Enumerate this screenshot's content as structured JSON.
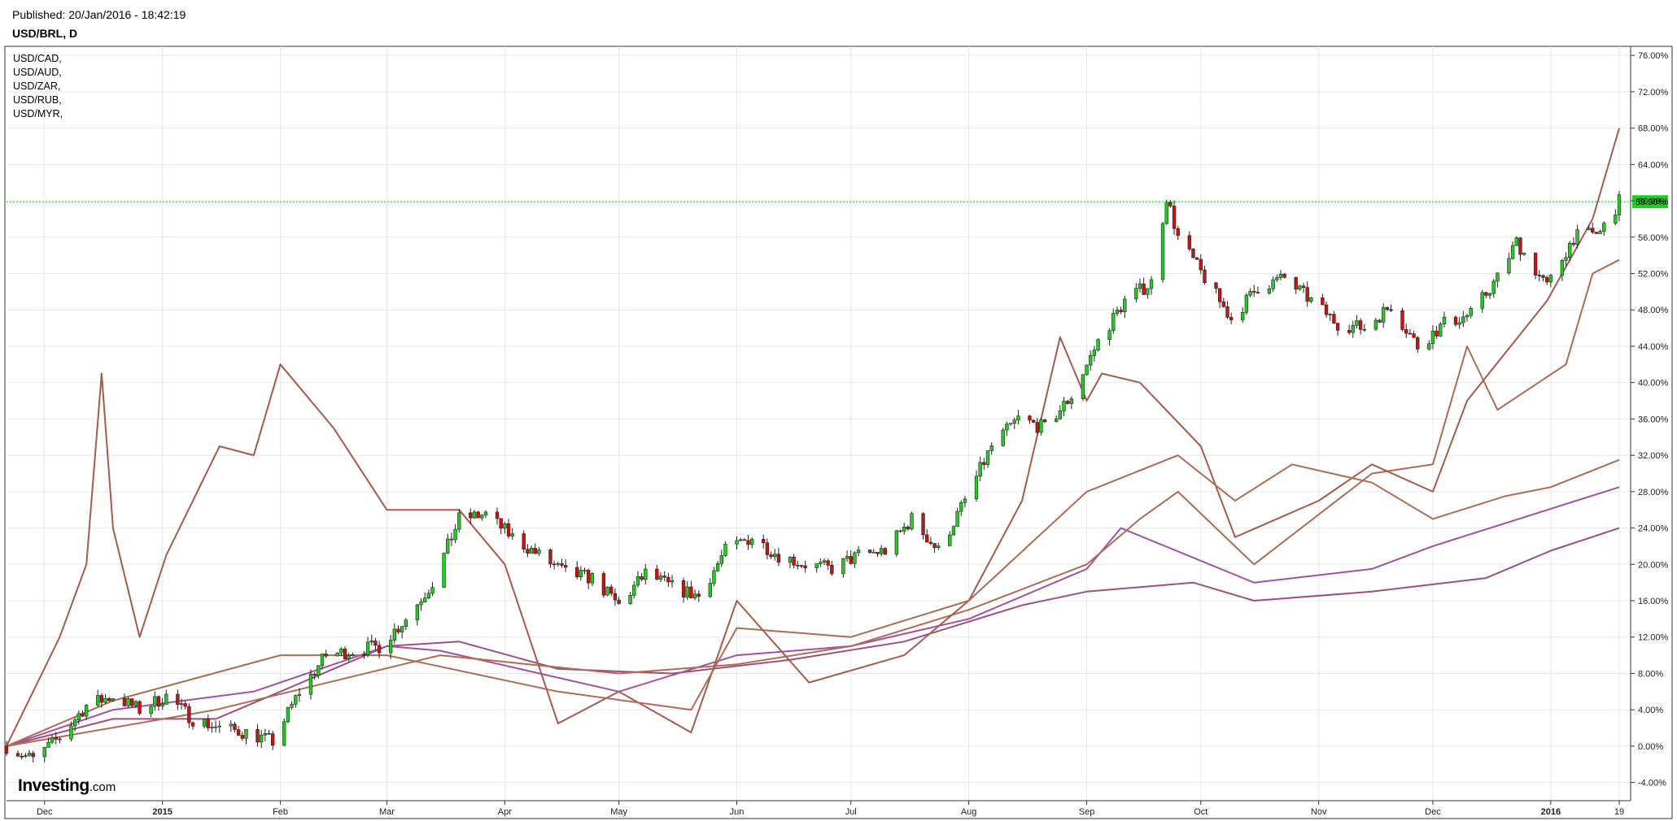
{
  "header": {
    "published": "Published: 20/Jan/2016 - 18:42:19",
    "symbol": "USD/BRL, D"
  },
  "brand": {
    "name": "Investing",
    "suffix": ".com"
  },
  "legend": [
    "USD/CAD,",
    "USD/AUD,",
    "USD/ZAR,",
    "USD/RUB,",
    "USD/MYR,"
  ],
  "colors": {
    "up": "#22cc22",
    "down": "#cc1111",
    "candle_outline": "#222222",
    "grid": "#e8e8e8",
    "current_line": "#22cc22",
    "current_badge": "#22cc22",
    "comparison": [
      "#9c4f80",
      "#a44fa6",
      "#b06a52",
      "#a85a4a",
      "#b06a52"
    ]
  },
  "chart_data": {
    "type": "candlestick",
    "title": "USD/BRL, D",
    "y_unit": "% change",
    "ylim": [
      -6,
      77
    ],
    "yticks": [
      -4,
      0,
      4,
      8,
      12,
      16,
      20,
      24,
      28,
      32,
      36,
      40,
      44,
      48,
      52,
      56,
      60,
      64,
      68,
      72,
      76
    ],
    "ytick_labels": [
      "-4.00%",
      "0.00%",
      "4.00%",
      "8.00%",
      "12.00%",
      "16.00%",
      "20.00%",
      "24.00%",
      "28.00%",
      "32.00%",
      "36.00%",
      "40.00%",
      "44.00%",
      "48.00%",
      "52.00%",
      "56.00%",
      "60.00%",
      "64.00%",
      "68.00%",
      "72.00%",
      "76.00%"
    ],
    "xlim": [
      "2014-11-21",
      "2016-01-22"
    ],
    "xticks": [
      {
        "date": "2014-12-01",
        "label": "Dec",
        "bold": false
      },
      {
        "date": "2015-01-01",
        "label": "2015",
        "bold": true
      },
      {
        "date": "2015-02-01",
        "label": "Feb",
        "bold": false
      },
      {
        "date": "2015-03-01",
        "label": "Mar",
        "bold": false
      },
      {
        "date": "2015-04-01",
        "label": "Apr",
        "bold": false
      },
      {
        "date": "2015-05-01",
        "label": "May",
        "bold": false
      },
      {
        "date": "2015-06-01",
        "label": "Jun",
        "bold": false
      },
      {
        "date": "2015-07-01",
        "label": "Jul",
        "bold": false
      },
      {
        "date": "2015-08-01",
        "label": "Aug",
        "bold": false
      },
      {
        "date": "2015-09-01",
        "label": "Sep",
        "bold": false
      },
      {
        "date": "2015-10-01",
        "label": "Oct",
        "bold": false
      },
      {
        "date": "2015-11-01",
        "label": "Nov",
        "bold": false
      },
      {
        "date": "2015-12-01",
        "label": "Dec",
        "bold": false
      },
      {
        "date": "2016-01-01",
        "label": "2016",
        "bold": true
      },
      {
        "date": "2016-01-19",
        "label": "19",
        "bold": false
      }
    ],
    "current_value": 59.9,
    "current_label": "59.90%",
    "main_series": {
      "name": "USD/BRL",
      "close": [
        [
          "2014-11-21",
          0
        ],
        [
          "2014-11-28",
          -1.5
        ],
        [
          "2014-12-05",
          1
        ],
        [
          "2014-12-12",
          4.5
        ],
        [
          "2014-12-19",
          5.5
        ],
        [
          "2014-12-26",
          4
        ],
        [
          "2015-01-02",
          5.5
        ],
        [
          "2015-01-09",
          3
        ],
        [
          "2015-01-16",
          2
        ],
        [
          "2015-01-23",
          1.5
        ],
        [
          "2015-01-30",
          0.5
        ],
        [
          "2015-02-06",
          6
        ],
        [
          "2015-02-13",
          10
        ],
        [
          "2015-02-20",
          10.5
        ],
        [
          "2015-02-27",
          11
        ],
        [
          "2015-03-06",
          14
        ],
        [
          "2015-03-13",
          18
        ],
        [
          "2015-03-20",
          25
        ],
        [
          "2015-03-27",
          25.5
        ],
        [
          "2015-04-03",
          23
        ],
        [
          "2015-04-10",
          21
        ],
        [
          "2015-04-17",
          19
        ],
        [
          "2015-04-24",
          18.5
        ],
        [
          "2015-05-01",
          15.5
        ],
        [
          "2015-05-08",
          19
        ],
        [
          "2015-05-15",
          17.5
        ],
        [
          "2015-05-22",
          16.5
        ],
        [
          "2015-05-29",
          21.5
        ],
        [
          "2015-06-05",
          23
        ],
        [
          "2015-06-12",
          21
        ],
        [
          "2015-06-19",
          20
        ],
        [
          "2015-06-26",
          19.5
        ],
        [
          "2015-07-03",
          21
        ],
        [
          "2015-07-10",
          21.5
        ],
        [
          "2015-07-17",
          25
        ],
        [
          "2015-07-24",
          21.5
        ],
        [
          "2015-07-31",
          27
        ],
        [
          "2015-08-07",
          33
        ],
        [
          "2015-08-14",
          36
        ],
        [
          "2015-08-21",
          35
        ],
        [
          "2015-08-28",
          38.5
        ],
        [
          "2015-09-04",
          44.5
        ],
        [
          "2015-09-11",
          49
        ],
        [
          "2015-09-18",
          51
        ],
        [
          "2015-09-22",
          60.5
        ],
        [
          "2015-09-25",
          56
        ],
        [
          "2015-10-02",
          51.5
        ],
        [
          "2015-10-09",
          47
        ],
        [
          "2015-10-16",
          50.5
        ],
        [
          "2015-10-23",
          51.5
        ],
        [
          "2015-10-30",
          49
        ],
        [
          "2015-11-06",
          46.5
        ],
        [
          "2015-11-13",
          46
        ],
        [
          "2015-11-20",
          48.5
        ],
        [
          "2015-11-27",
          44
        ],
        [
          "2015-12-04",
          46.5
        ],
        [
          "2015-12-11",
          47.5
        ],
        [
          "2015-12-18",
          51.5
        ],
        [
          "2015-12-23",
          55.5
        ],
        [
          "2015-12-31",
          50.5
        ],
        [
          "2016-01-07",
          56
        ],
        [
          "2016-01-14",
          56.5
        ],
        [
          "2016-01-19",
          59.9
        ]
      ]
    },
    "series": [
      {
        "name": "USD/CAD",
        "points": [
          [
            "2014-11-21",
            0
          ],
          [
            "2014-12-19",
            3
          ],
          [
            "2015-01-15",
            3
          ],
          [
            "2015-02-01",
            6
          ],
          [
            "2015-03-01",
            11
          ],
          [
            "2015-03-20",
            11.5
          ],
          [
            "2015-04-15",
            8.5
          ],
          [
            "2015-05-15",
            8
          ],
          [
            "2015-06-15",
            9.5
          ],
          [
            "2015-07-15",
            11.5
          ],
          [
            "2015-08-15",
            15.5
          ],
          [
            "2015-09-01",
            17
          ],
          [
            "2015-09-29",
            18
          ],
          [
            "2015-10-15",
            16
          ],
          [
            "2015-11-15",
            17
          ],
          [
            "2015-12-15",
            18.5
          ],
          [
            "2016-01-01",
            21.5
          ],
          [
            "2016-01-19",
            24
          ]
        ]
      },
      {
        "name": "USD/AUD",
        "points": [
          [
            "2014-11-21",
            0
          ],
          [
            "2014-12-19",
            4
          ],
          [
            "2015-01-25",
            6
          ],
          [
            "2015-03-01",
            11
          ],
          [
            "2015-03-15",
            10.5
          ],
          [
            "2015-05-01",
            6
          ],
          [
            "2015-06-01",
            10
          ],
          [
            "2015-07-01",
            11
          ],
          [
            "2015-08-01",
            14
          ],
          [
            "2015-09-01",
            19.5
          ],
          [
            "2015-09-10",
            24
          ],
          [
            "2015-10-15",
            18
          ],
          [
            "2015-11-15",
            19.5
          ],
          [
            "2015-12-01",
            22
          ],
          [
            "2016-01-19",
            28.5
          ]
        ]
      },
      {
        "name": "USD/ZAR",
        "points": [
          [
            "2014-11-21",
            0
          ],
          [
            "2015-01-15",
            4
          ],
          [
            "2015-03-15",
            10
          ],
          [
            "2015-05-01",
            8
          ],
          [
            "2015-06-01",
            9
          ],
          [
            "2015-07-01",
            11
          ],
          [
            "2015-08-01",
            15
          ],
          [
            "2015-09-01",
            20
          ],
          [
            "2015-09-15",
            25
          ],
          [
            "2015-09-25",
            28
          ],
          [
            "2015-10-15",
            20
          ],
          [
            "2015-11-15",
            30
          ],
          [
            "2015-12-01",
            31
          ],
          [
            "2015-12-10",
            44
          ],
          [
            "2015-12-18",
            37
          ],
          [
            "2016-01-05",
            42
          ],
          [
            "2016-01-12",
            52
          ],
          [
            "2016-01-19",
            53.5
          ]
        ]
      },
      {
        "name": "USD/RUB",
        "points": [
          [
            "2014-11-21",
            0
          ],
          [
            "2014-12-05",
            12
          ],
          [
            "2014-12-12",
            20
          ],
          [
            "2014-12-16",
            41
          ],
          [
            "2014-12-19",
            24
          ],
          [
            "2014-12-26",
            12
          ],
          [
            "2015-01-02",
            21
          ],
          [
            "2015-01-16",
            33
          ],
          [
            "2015-01-25",
            32
          ],
          [
            "2015-02-01",
            42
          ],
          [
            "2015-02-15",
            35
          ],
          [
            "2015-03-01",
            26
          ],
          [
            "2015-03-20",
            26
          ],
          [
            "2015-04-01",
            20
          ],
          [
            "2015-04-15",
            2.5
          ],
          [
            "2015-05-01",
            6
          ],
          [
            "2015-05-20",
            1.5
          ],
          [
            "2015-06-01",
            16
          ],
          [
            "2015-06-20",
            7
          ],
          [
            "2015-07-15",
            10
          ],
          [
            "2015-08-01",
            16
          ],
          [
            "2015-08-15",
            27
          ],
          [
            "2015-08-25",
            45
          ],
          [
            "2015-09-01",
            38
          ],
          [
            "2015-09-05",
            41
          ],
          [
            "2015-09-15",
            40
          ],
          [
            "2015-10-01",
            33
          ],
          [
            "2015-10-10",
            23
          ],
          [
            "2015-11-01",
            27
          ],
          [
            "2015-11-15",
            31
          ],
          [
            "2015-12-01",
            28
          ],
          [
            "2015-12-10",
            38
          ],
          [
            "2015-12-31",
            49
          ],
          [
            "2016-01-12",
            58
          ],
          [
            "2016-01-19",
            68
          ]
        ]
      },
      {
        "name": "USD/MYR",
        "points": [
          [
            "2014-11-21",
            0
          ],
          [
            "2014-12-19",
            5
          ],
          [
            "2015-02-01",
            10
          ],
          [
            "2015-03-01",
            10
          ],
          [
            "2015-04-15",
            6
          ],
          [
            "2015-05-20",
            4
          ],
          [
            "2015-06-01",
            13
          ],
          [
            "2015-07-01",
            12
          ],
          [
            "2015-08-01",
            16
          ],
          [
            "2015-09-01",
            28
          ],
          [
            "2015-09-25",
            32
          ],
          [
            "2015-10-10",
            27
          ],
          [
            "2015-10-25",
            31
          ],
          [
            "2015-11-15",
            29
          ],
          [
            "2015-12-01",
            25
          ],
          [
            "2015-12-20",
            27.5
          ],
          [
            "2016-01-01",
            28.5
          ],
          [
            "2016-01-19",
            31.5
          ]
        ]
      }
    ]
  }
}
